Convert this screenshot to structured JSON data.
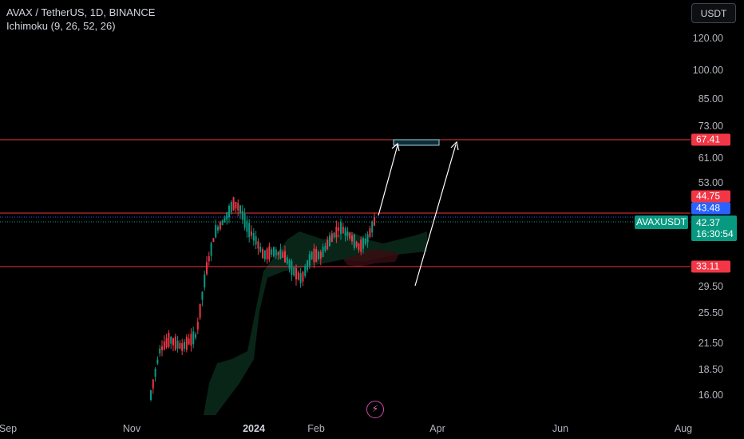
{
  "legend": {
    "symbol_line": "AVAX / TetherUS, 1D, BINANCE",
    "indicator": "Ichimoku (9, 26, 52, 26)"
  },
  "currency_button": "USDT",
  "y_axis_labels": [
    "120.00",
    "100.00",
    "85.00",
    "73.00",
    "61.00",
    "53.00",
    "29.50",
    "25.50",
    "21.50",
    "18.50",
    "16.00"
  ],
  "x_axis_labels": [
    {
      "text": "Sep",
      "bold": false
    },
    {
      "text": "Nov",
      "bold": false
    },
    {
      "text": "2024",
      "bold": true
    },
    {
      "text": "Feb",
      "bold": false
    },
    {
      "text": "Apr",
      "bold": false
    },
    {
      "text": "Jun",
      "bold": false
    },
    {
      "text": "Aug",
      "bold": false
    }
  ],
  "price_tags": [
    {
      "value": "67.41",
      "color": "#f23645"
    },
    {
      "value": "44.75",
      "color": "#f23645"
    },
    {
      "value": "43.48",
      "color": "#2962ff"
    },
    {
      "value": "33.11",
      "color": "#f23645"
    }
  ],
  "current": {
    "symbol": "AVAXUSDT",
    "price": "42.37",
    "countdown": "16:30:54",
    "color": "#089981"
  },
  "colors": {
    "up": "#089981",
    "down": "#f23645",
    "hline": "#f23645",
    "annotation": "#ffffff"
  },
  "icons": {
    "flash": "lightning-icon"
  }
}
